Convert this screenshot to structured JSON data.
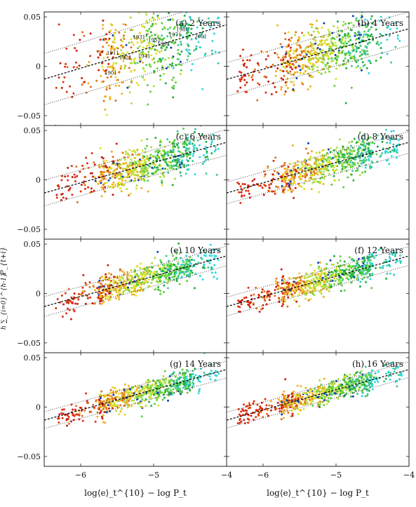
{
  "figure": {
    "ylabel_partial": "P_{t+i}",
    "ylabel_fragment": "h ∑_{i=0}^{h-1}",
    "xlabel": "log⟨e⟩_t^{10} − log P_t"
  },
  "chart_data": [
    {
      "type": "scatter",
      "title": "(a) 2 Years",
      "xlim": [
        -6.5,
        -4.0
      ],
      "ylim": [
        -0.06,
        0.055
      ],
      "xticks": [
        -6,
        -5,
        -4
      ],
      "yticks": [
        -0.05,
        0,
        0.05
      ],
      "xtick_labels": [
        "−6",
        "−5",
        "−4"
      ],
      "ytick_labels": [
        "−0.05",
        "0",
        "0.05"
      ],
      "xlabel": "log⟨e⟩_t^{10} − log P_t",
      "fit_line": {
        "intercept": 0.13,
        "slope": 0.022
      },
      "band_halfwidth": 0.026,
      "point_count": 500,
      "point_spread": 0.022,
      "year_labels": [
        "1901",
        "1911",
        "1921",
        "1931",
        "1941",
        "1951",
        "1961",
        "1971",
        "1981",
        "2001"
      ]
    },
    {
      "type": "scatter",
      "title": "(b) 4 Years",
      "xlim": [
        -6.5,
        -4.0
      ],
      "ylim": [
        -0.06,
        0.055
      ],
      "xticks": [
        -6,
        -5,
        -4
      ],
      "yticks": [
        -0.05,
        0,
        0.05
      ],
      "xtick_labels": [
        "−6",
        "−5",
        "−4"
      ],
      "ytick_labels": [
        "−0.05",
        "0",
        "0.05"
      ],
      "xlabel": "log⟨e⟩_t^{10} − log P_t",
      "fit_line": {
        "intercept": 0.12,
        "slope": 0.0205
      },
      "band_halfwidth": 0.017,
      "point_count": 650,
      "point_spread": 0.014
    },
    {
      "type": "scatter",
      "title": "(c) 6 Years",
      "xlim": [
        -6.5,
        -4.0
      ],
      "ylim": [
        -0.06,
        0.055
      ],
      "xticks": [
        -6,
        -5,
        -4
      ],
      "yticks": [
        -0.05,
        0,
        0.05
      ],
      "xtick_labels": [
        "−6",
        "−5",
        "−4"
      ],
      "ytick_labels": [
        "−0.05",
        "0",
        "0.05"
      ],
      "xlabel": "log⟨e⟩_t^{10} − log P_t",
      "fit_line": {
        "intercept": 0.12,
        "slope": 0.0205
      },
      "band_halfwidth": 0.013,
      "point_count": 650,
      "point_spread": 0.01
    },
    {
      "type": "scatter",
      "title": "(d) 8 Years",
      "xlim": [
        -6.5,
        -4.0
      ],
      "ylim": [
        -0.06,
        0.055
      ],
      "xticks": [
        -6,
        -5,
        -4
      ],
      "yticks": [
        -0.05,
        0,
        0.05
      ],
      "xtick_labels": [
        "−6",
        "−5",
        "−4"
      ],
      "ytick_labels": [
        "−0.05",
        "0",
        "0.05"
      ],
      "xlabel": "log⟨e⟩_t^{10} − log P_t",
      "fit_line": {
        "intercept": 0.12,
        "slope": 0.0205
      },
      "band_halfwidth": 0.011,
      "point_count": 650,
      "point_spread": 0.0085
    },
    {
      "type": "scatter",
      "title": "(e) 10 Years",
      "xlim": [
        -6.5,
        -4.0
      ],
      "ylim": [
        -0.06,
        0.055
      ],
      "xticks": [
        -6,
        -5,
        -4
      ],
      "yticks": [
        -0.05,
        0,
        0.05
      ],
      "xtick_labels": [
        "−6",
        "−5",
        "−4"
      ],
      "ytick_labels": [
        "−0.05",
        "0",
        "0.05"
      ],
      "xlabel": "log⟨e⟩_t^{10} − log P_t",
      "fit_line": {
        "intercept": 0.12,
        "slope": 0.0205
      },
      "band_halfwidth": 0.01,
      "point_count": 650,
      "point_spread": 0.0075
    },
    {
      "type": "scatter",
      "title": "(f) 12 Years",
      "xlim": [
        -6.5,
        -4.0
      ],
      "ylim": [
        -0.06,
        0.055
      ],
      "xticks": [
        -6,
        -5,
        -4
      ],
      "yticks": [
        -0.05,
        0,
        0.05
      ],
      "xtick_labels": [
        "−6",
        "−5",
        "−4"
      ],
      "ytick_labels": [
        "−0.05",
        "0",
        "0.05"
      ],
      "xlabel": "log⟨e⟩_t^{10} − log P_t",
      "fit_line": {
        "intercept": 0.12,
        "slope": 0.0205
      },
      "band_halfwidth": 0.0095,
      "point_count": 650,
      "point_spread": 0.007
    },
    {
      "type": "scatter",
      "title": "(g) 14 Years",
      "xlim": [
        -6.5,
        -4.0
      ],
      "ylim": [
        -0.06,
        0.055
      ],
      "xticks": [
        -6,
        -5,
        -4
      ],
      "yticks": [
        -0.05,
        0,
        0.05
      ],
      "xtick_labels": [
        "−6",
        "−5",
        "−4"
      ],
      "ytick_labels": [
        "−0.05",
        "0",
        "0.05"
      ],
      "xlabel": "log⟨e⟩_t^{10} − log P_t",
      "fit_line": {
        "intercept": 0.12,
        "slope": 0.0205
      },
      "band_halfwidth": 0.0085,
      "point_count": 650,
      "point_spread": 0.006
    },
    {
      "type": "scatter",
      "title": "(h) 16 Years",
      "xlim": [
        -6.5,
        -4.0
      ],
      "ylim": [
        -0.06,
        0.055
      ],
      "xticks": [
        -6,
        -5,
        -4
      ],
      "yticks": [
        -0.05,
        0,
        0.05
      ],
      "xtick_labels": [
        "−6",
        "−5",
        "−4"
      ],
      "ytick_labels": [
        "−0.05",
        "0",
        "0.05"
      ],
      "xlabel": "log⟨e⟩_t^{10} − log P_t",
      "fit_line": {
        "intercept": 0.12,
        "slope": 0.0205
      },
      "band_halfwidth": 0.008,
      "point_count": 650,
      "point_spread": 0.0055
    }
  ],
  "colors": {
    "frame": "#222222",
    "fit_line": "#000000",
    "band_line": "#333333",
    "colormap": [
      "#30d8e0",
      "#40c8a0",
      "#20b040",
      "#60d040",
      "#a8e040",
      "#e0e030",
      "#f0b020",
      "#e07020",
      "#e03010",
      "#c82010",
      "#1040b0"
    ]
  }
}
